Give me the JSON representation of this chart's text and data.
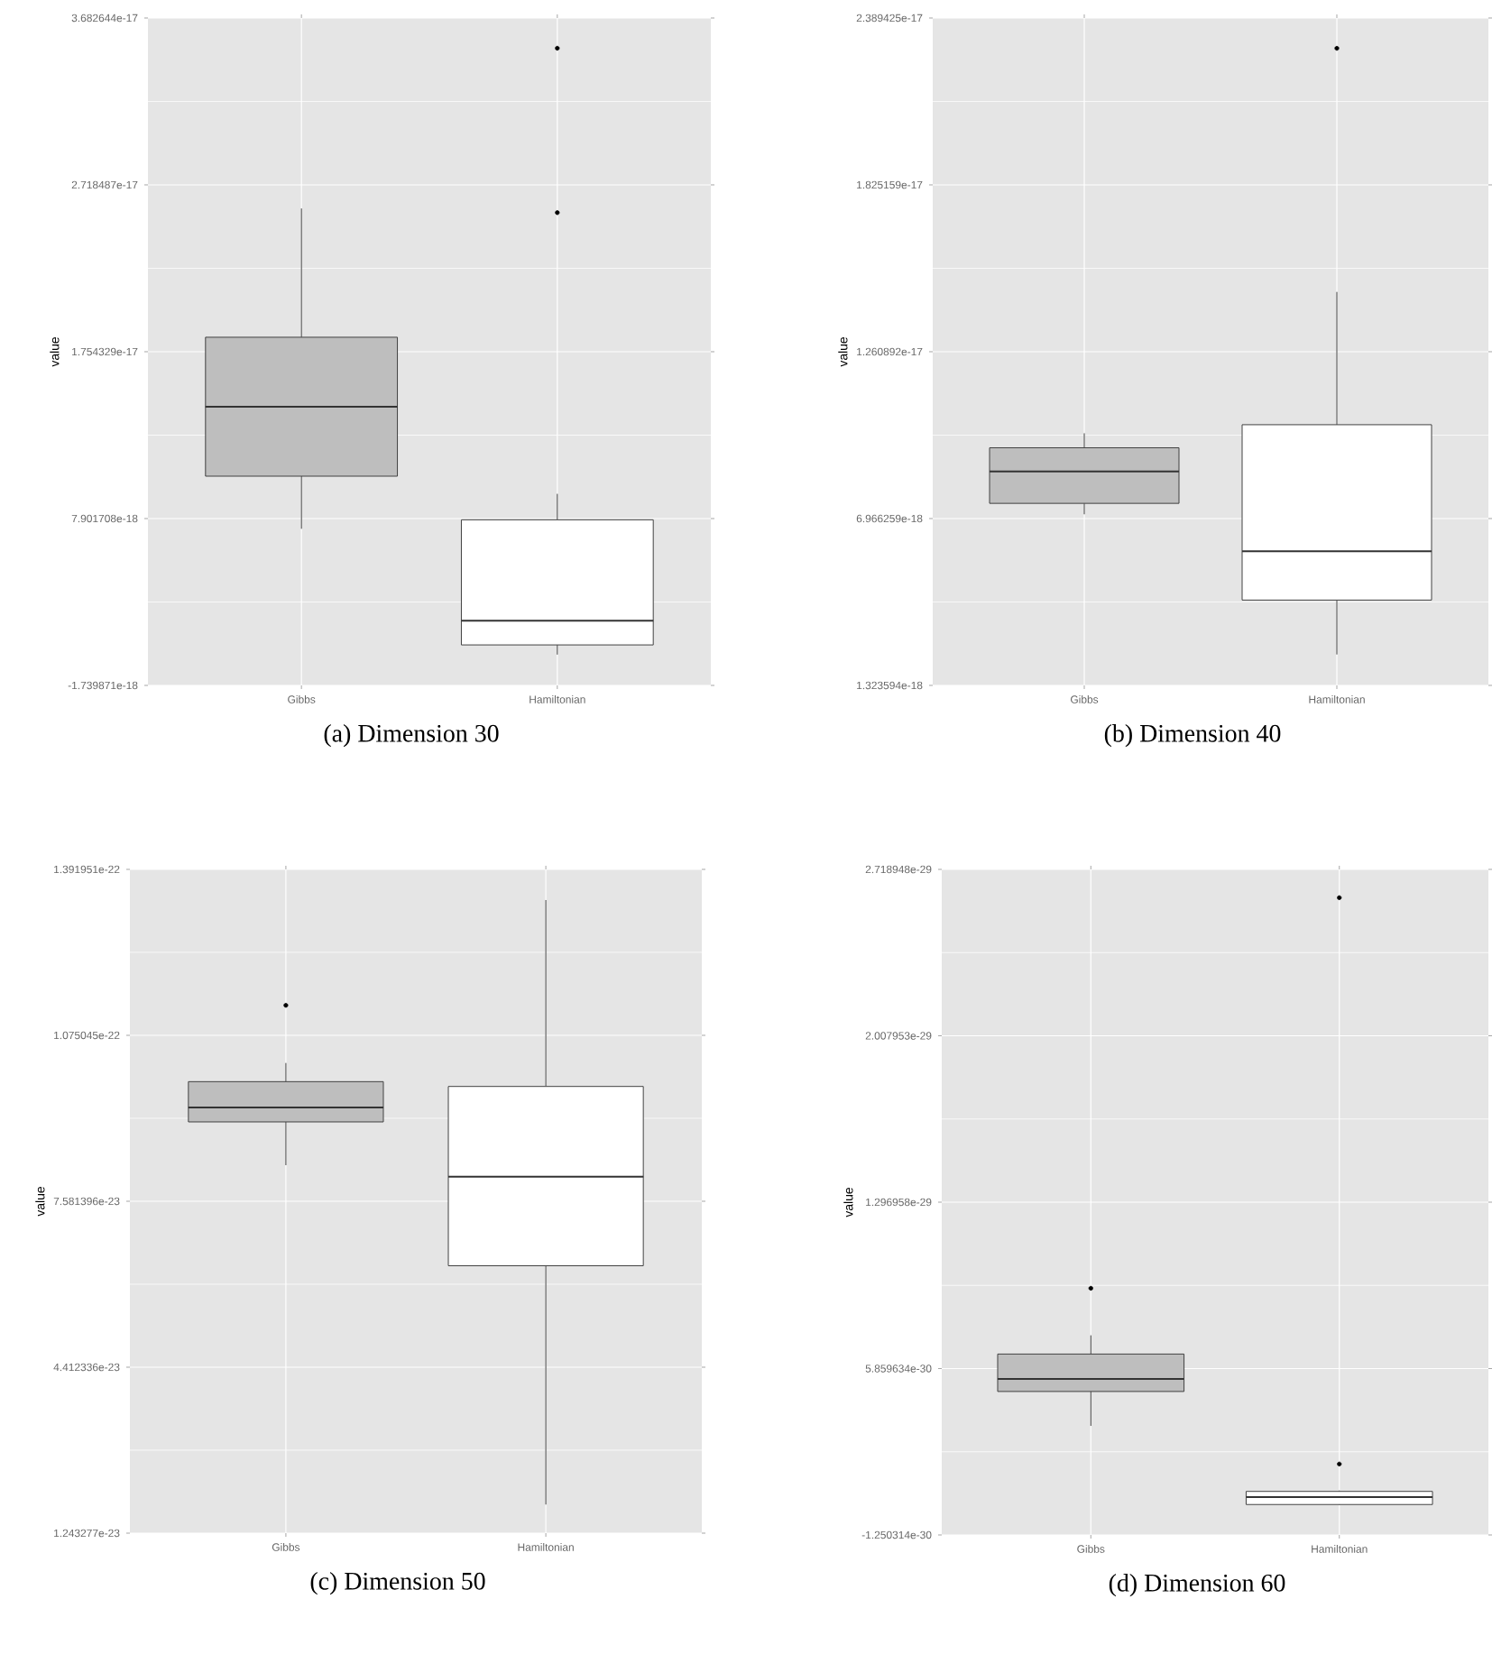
{
  "chart_data": [
    {
      "type": "box",
      "title": "(a) Dimension 30",
      "ylabel": "value",
      "categories": [
        "Gibbs",
        "Hamiltonian"
      ],
      "colors": [
        "#bebebe",
        "#ffffff"
      ],
      "grid": true,
      "ylim": [
        -1.739871e-18,
        3.682644e-17
      ],
      "yticks": [
        -1.739871e-18,
        7.901708e-18,
        1.754329e-17,
        2.718487e-17,
        3.682644e-17
      ],
      "boxes": [
        {
          "low": 7.31e-18,
          "q1": 1.035e-17,
          "median": 1.436e-17,
          "q3": 1.838e-17,
          "high": 2.582e-17
        },
        {
          "low": 4e-20,
          "q1": 6e-19,
          "median": 2e-18,
          "q3": 7.83e-18,
          "high": 9.33e-18,
          "outliers": [
            3.508e-17,
            2.558e-17
          ]
        }
      ]
    },
    {
      "type": "box",
      "title": "(b) Dimension 40",
      "ylabel": "value",
      "categories": [
        "Gibbs",
        "Hamiltonian"
      ],
      "colors": [
        "#bebebe",
        "#ffffff"
      ],
      "grid": true,
      "ylim": [
        1.323594e-18,
        2.389425e-17
      ],
      "yticks": [
        1.323594e-18,
        6.966259e-18,
        1.260892e-17,
        1.825159e-17,
        2.389425e-17
      ],
      "boxes": [
        {
          "low": 7.11e-18,
          "q1": 7.48e-18,
          "median": 8.56e-18,
          "q3": 9.36e-18,
          "high": 9.85e-18
        },
        {
          "low": 2.37e-18,
          "q1": 4.21e-18,
          "median": 5.86e-18,
          "q3": 1.014e-17,
          "high": 1.463e-17,
          "outliers": [
            2.287e-17
          ]
        }
      ]
    },
    {
      "type": "box",
      "title": "(c) Dimension 50",
      "ylabel": "value",
      "categories": [
        "Gibbs",
        "Hamiltonian"
      ],
      "colors": [
        "#bebebe",
        "#ffffff"
      ],
      "grid": true,
      "ylim": [
        1.243277e-23,
        1.391951e-22
      ],
      "yticks": [
        1.243277e-23,
        4.412336e-23,
        7.581396e-23,
        1.075045e-22,
        1.391951e-22
      ],
      "boxes": [
        {
          "low": 8.27e-23,
          "q1": 9.097e-23,
          "median": 9.372e-23,
          "q3": 9.866e-23,
          "high": 1.0222e-22,
          "outliers": [
            1.1324e-22
          ]
        },
        {
          "low": 1.79e-23,
          "q1": 6.35e-23,
          "median": 8.05e-23,
          "q3": 9.774e-23,
          "high": 1.3334e-22
        }
      ]
    },
    {
      "type": "box",
      "title": "(d) Dimension 60",
      "ylabel": "value",
      "categories": [
        "Gibbs",
        "Hamiltonian"
      ],
      "colors": [
        "#bebebe",
        "#ffffff"
      ],
      "grid": true,
      "ylim": [
        -1.250314e-30,
        2.718948e-29
      ],
      "yticks": [
        -1.250314e-30,
        5.859634e-30,
        1.296958e-29,
        2.007953e-29,
        2.718948e-29
      ],
      "boxes": [
        {
          "low": 3.41e-30,
          "q1": 4.88e-30,
          "median": 5.42e-30,
          "q3": 6.48e-30,
          "high": 7.28e-30,
          "outliers": [
            9.29e-30
          ]
        },
        {
          "low": 3e-32,
          "q1": 5e-32,
          "median": 3.7e-31,
          "q3": 6.1e-31,
          "high": 6.5e-31,
          "outliers": [
            2.598e-29,
            1.78e-30
          ]
        }
      ]
    }
  ]
}
